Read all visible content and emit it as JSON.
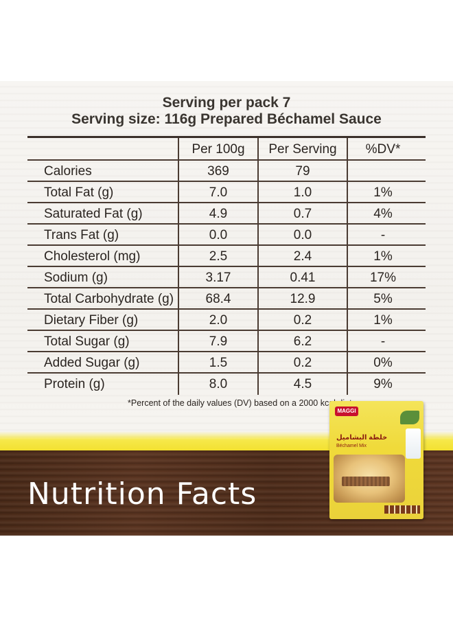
{
  "header": {
    "line1": "Serving per pack 7",
    "line2": "Serving size: 116g Prepared Béchamel Sauce"
  },
  "table": {
    "columns": [
      "",
      "Per 100g",
      "Per Serving",
      "%DV*"
    ],
    "rows": [
      {
        "label": "Calories",
        "per100": "369",
        "perServing": "79",
        "dv": ""
      },
      {
        "label": "Total Fat (g)",
        "per100": "7.0",
        "perServing": "1.0",
        "dv": "1%"
      },
      {
        "label": "Saturated Fat (g)",
        "per100": "4.9",
        "perServing": "0.7",
        "dv": "4%"
      },
      {
        "label": "Trans Fat (g)",
        "per100": "0.0",
        "perServing": "0.0",
        "dv": "-"
      },
      {
        "label": "Cholesterol (mg)",
        "per100": "2.5",
        "perServing": "2.4",
        "dv": "1%"
      },
      {
        "label": "Sodium (g)",
        "per100": "3.17",
        "perServing": "0.41",
        "dv": "17%"
      },
      {
        "label": "Total Carbohydrate (g)",
        "per100": "68.4",
        "perServing": "12.9",
        "dv": "5%"
      },
      {
        "label": "Dietary Fiber (g)",
        "per100": "2.0",
        "perServing": "0.2",
        "dv": "1%"
      },
      {
        "label": "Total Sugar (g)",
        "per100": "7.9",
        "perServing": "6.2",
        "dv": "-"
      },
      {
        "label": "Added Sugar (g)",
        "per100": "1.5",
        "perServing": "0.2",
        "dv": "0%"
      },
      {
        "label": "Protein (g)",
        "per100": "8.0",
        "perServing": "4.5",
        "dv": "9%"
      }
    ]
  },
  "footnote": "*Percent of the daily values (DV) based on a 2000 kcal diet.",
  "banner": {
    "title": "Nutrition Facts"
  },
  "product": {
    "brand": "MAGGI",
    "name_ar": "خلطة البشاميل",
    "name_en": "Béchamel Mix"
  },
  "colors": {
    "text": "#2a2420",
    "rule": "#4a3b32",
    "wood": "#5a3420",
    "yellow": "#f2df2a",
    "brand_red": "#c8102e"
  }
}
